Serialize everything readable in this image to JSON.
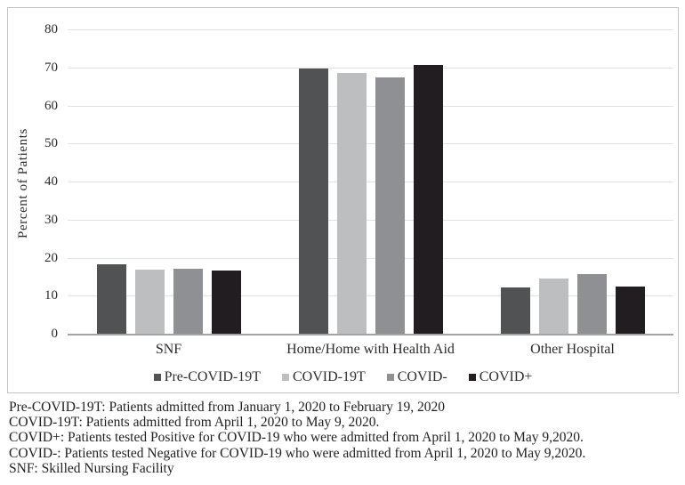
{
  "chart_data": {
    "type": "bar",
    "title": "",
    "xlabel": "",
    "ylabel": "Percent of Patients",
    "ylim": [
      0,
      80
    ],
    "yticks": [
      0,
      10,
      20,
      30,
      40,
      50,
      60,
      70,
      80
    ],
    "grid": true,
    "legend_position": "bottom",
    "categories": [
      "SNF",
      "Home/Home with Health Aid",
      "Other Hospital"
    ],
    "series": [
      {
        "name": "Pre-COVID-19T",
        "color": "#515254",
        "values": [
          18.2,
          69.6,
          12.1
        ]
      },
      {
        "name": "COVID-19T",
        "color": "#bcbec0",
        "values": [
          16.9,
          68.6,
          14.4
        ]
      },
      {
        "name": "COVID-",
        "color": "#8e9093",
        "values": [
          17.0,
          67.3,
          15.7
        ]
      },
      {
        "name": "COVID+",
        "color": "#211d20",
        "values": [
          16.7,
          70.7,
          12.3
        ]
      }
    ]
  },
  "colors": {
    "frame_border": "#c4c4c4",
    "gridline": "#e2e2e2",
    "axis_line": "#a3a3a3",
    "text": "#262626"
  },
  "footnotes": [
    "Pre-COVID-19T: Patients admitted from January 1, 2020 to February 19, 2020",
    "COVID-19T: Patients admitted from April 1, 2020 to May 9, 2020.",
    "COVID+: Patients tested Positive for COVID-19 who were admitted from April 1, 2020 to May 9,2020.",
    "COVID-: Patients tested Negative for COVID-19 who were admitted from April 1, 2020 to May 9,2020.",
    "SNF: Skilled Nursing Facility"
  ]
}
